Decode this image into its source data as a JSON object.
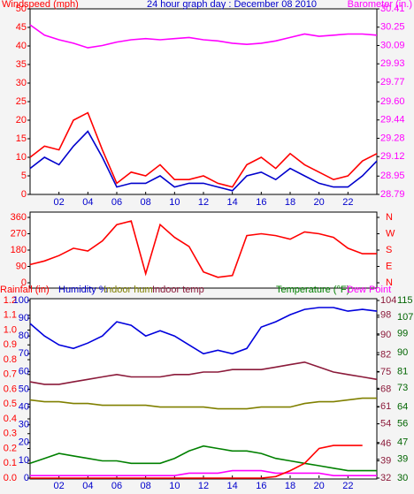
{
  "chart_data": [
    {
      "type": "line",
      "title": "24 hour graph day : December 08 2010",
      "ylabel": "Windspeed (mph)",
      "y2label": "Barometer (in.)",
      "x": [
        0,
        1,
        2,
        3,
        4,
        5,
        6,
        7,
        8,
        9,
        10,
        11,
        12,
        13,
        14,
        15,
        16,
        17,
        18,
        19,
        20,
        21,
        22,
        23,
        24
      ],
      "xlim": [
        0,
        24
      ],
      "xticks": [
        {
          "value": 2,
          "label": "02"
        },
        {
          "value": 4,
          "label": "04"
        },
        {
          "value": 6,
          "label": "06"
        },
        {
          "value": 8,
          "label": "08"
        },
        10,
        12,
        14,
        16,
        18,
        20,
        22
      ],
      "ylim": [
        0,
        50
      ],
      "yticks": [
        0,
        5,
        10,
        15,
        20,
        25,
        30,
        35,
        40,
        45,
        50
      ],
      "y2lim": [
        28.79,
        30.41
      ],
      "y2ticks": [
        28.79,
        28.95,
        29.12,
        29.28,
        29.44,
        {
          "value": 29.6,
          "label": "29.60"
        },
        29.77,
        29.93,
        30.09,
        30.25,
        30.41
      ],
      "series": [
        {
          "color": "#ff0000",
          "values": [
            10,
            13,
            12,
            20,
            22,
            12,
            3,
            6,
            5,
            8,
            4,
            4,
            5,
            3,
            2,
            8,
            10,
            7,
            11,
            8,
            6,
            4,
            5,
            9,
            11
          ]
        },
        {
          "color": "#0000cc",
          "values": [
            7,
            10,
            8,
            13,
            17,
            10,
            2,
            3,
            3,
            5,
            2,
            3,
            3,
            2,
            1,
            5,
            6,
            4,
            7,
            5,
            3,
            2,
            2,
            5,
            9
          ]
        },
        {
          "color": "#ff00ff",
          "axis": "y2",
          "values": [
            30.27,
            30.18,
            30.14,
            30.11,
            30.07,
            30.09,
            30.12,
            30.14,
            30.15,
            30.14,
            30.15,
            30.16,
            30.14,
            30.13,
            30.11,
            30.1,
            30.11,
            30.13,
            30.16,
            30.19,
            30.17,
            30.18,
            30.19,
            30.19,
            30.18
          ]
        }
      ]
    },
    {
      "type": "line",
      "x": [
        0,
        1,
        2,
        3,
        4,
        5,
        6,
        7,
        8,
        9,
        10,
        11,
        12,
        13,
        14,
        15,
        16,
        17,
        18,
        19,
        20,
        21,
        22,
        23,
        24
      ],
      "xlim": [
        0,
        24
      ],
      "ylim": [
        0,
        360
      ],
      "yticks": [
        0,
        90,
        180,
        270,
        360
      ],
      "y2lim": [
        0,
        360
      ],
      "y2ticks": [
        {
          "value": 0,
          "label": "N"
        },
        {
          "value": 90,
          "label": "E"
        },
        {
          "value": 180,
          "label": "S"
        },
        {
          "value": 270,
          "label": "W"
        },
        {
          "value": 360,
          "label": "N"
        }
      ],
      "series": [
        {
          "color": "#ff0000",
          "values": [
            100,
            120,
            150,
            190,
            175,
            230,
            320,
            340,
            50,
            320,
            250,
            200,
            60,
            30,
            40,
            260,
            270,
            260,
            240,
            280,
            270,
            250,
            190,
            160,
            160
          ]
        }
      ]
    },
    {
      "type": "line",
      "ylabel": "Rainfall (in)",
      "y2label": "Humidity %",
      "y2label_b": "Indoor hum",
      "y2label_c": "Indoor temp",
      "y3label": "Temperature (°F)",
      "y4label": "Dew Point",
      "x": [
        0,
        1,
        2,
        3,
        4,
        5,
        6,
        7,
        8,
        9,
        10,
        11,
        12,
        13,
        14,
        15,
        16,
        17,
        18,
        19,
        20,
        21,
        22,
        23,
        24
      ],
      "xlim": [
        0,
        24
      ],
      "xticks": [
        {
          "value": 2,
          "label": "02"
        },
        {
          "value": 4,
          "label": "04"
        },
        {
          "value": 6,
          "label": "06"
        },
        {
          "value": 8,
          "label": "08"
        },
        10,
        12,
        14,
        16,
        18,
        20,
        22
      ],
      "ylim": [
        0,
        1.2
      ],
      "yticks": [
        {
          "value": 0,
          "label": "0.0"
        },
        0.1,
        0.2,
        0.3,
        0.4,
        0.5,
        0.6,
        0.7,
        0.8,
        0.9,
        {
          "value": 1,
          "label": "1.0"
        },
        1.1,
        1.2
      ],
      "y2lim": [
        0,
        100
      ],
      "y2ticks": [
        0,
        10,
        20,
        30,
        40,
        50,
        60,
        70,
        80,
        90,
        100
      ],
      "y3lim": [
        32,
        104
      ],
      "y3ticks": [
        32,
        39,
        46,
        54,
        61,
        68,
        75,
        82,
        90,
        98,
        104
      ],
      "y4lim": [
        30,
        115
      ],
      "y4ticks": [
        30,
        39,
        47,
        56,
        64,
        73,
        81,
        90,
        99,
        107,
        115
      ],
      "series": [
        {
          "color": "#0000dd",
          "axis": "y2",
          "values": [
            87,
            80,
            75,
            73,
            76,
            80,
            88,
            86,
            80,
            83,
            80,
            75,
            70,
            72,
            70,
            73,
            85,
            88,
            92,
            95,
            96,
            96,
            94,
            95,
            94
          ]
        },
        {
          "color": "#808000",
          "axis": "y2",
          "values": [
            44,
            43,
            43,
            42,
            42,
            41,
            41,
            41,
            41,
            40,
            40,
            40,
            40,
            39,
            39,
            39,
            40,
            40,
            40,
            42,
            43,
            43,
            44,
            45,
            45
          ]
        },
        {
          "color": "#8b1a3a",
          "axis": "y3",
          "values": [
            71,
            70,
            70,
            71,
            72,
            73,
            74,
            73,
            73,
            73,
            74,
            74,
            75,
            75,
            76,
            76,
            76,
            77,
            78,
            79,
            77,
            75,
            74,
            73,
            72
          ]
        },
        {
          "color": "#008000",
          "axis": "y3",
          "values": [
            38,
            40,
            42,
            41,
            40,
            39,
            39,
            38,
            38,
            38,
            40,
            43,
            45,
            44,
            43,
            43,
            42,
            40,
            39,
            38,
            37,
            36,
            35,
            35,
            35
          ]
        },
        {
          "color": "#ff00ff",
          "axis": "y3",
          "values": [
            33,
            33,
            33,
            33,
            33,
            33,
            33,
            33,
            33,
            33,
            33,
            34,
            34,
            34,
            35,
            35,
            35,
            34,
            34,
            34,
            34,
            33,
            33,
            33,
            33
          ]
        },
        {
          "color": "#ff0000",
          "values": [
            0,
            0,
            0,
            0,
            0,
            0,
            0,
            0,
            0,
            0,
            0,
            0,
            0,
            0,
            0,
            0,
            0,
            0.01,
            0.05,
            0.1,
            0.2,
            0.22,
            0.22,
            0.22,
            null
          ]
        }
      ]
    }
  ]
}
